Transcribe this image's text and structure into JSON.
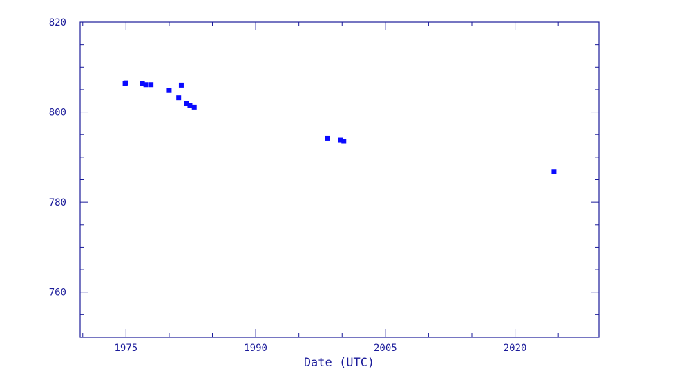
{
  "chart_data": {
    "type": "scatter",
    "title": "",
    "xlabel": "Date (UTC)",
    "ylabel": "",
    "xlim": [
      1969.7,
      2029.7
    ],
    "ylim": [
      750,
      820
    ],
    "x_major_ticks": [
      1975,
      1990,
      2005,
      2020
    ],
    "x_tick_labels": [
      "1975",
      "1990",
      "2005",
      "2020"
    ],
    "y_major_ticks": [
      760,
      780,
      800,
      820
    ],
    "y_tick_labels": [
      "760",
      "780",
      "800",
      "820"
    ],
    "grid": false,
    "legend": "none",
    "colors": {
      "axis": "#1b1b9a",
      "marker": "#0a0aff"
    },
    "marker": "square",
    "series": [
      {
        "x": [
          1974.9,
          1975.0,
          1976.9,
          1977.3,
          1977.9,
          1980.0,
          1981.1,
          1981.4,
          1982.0,
          1982.4,
          1982.9,
          1998.3,
          1999.8,
          2000.2,
          2024.5
        ],
        "y": [
          806.3,
          806.5,
          806.3,
          806.1,
          806.1,
          804.8,
          803.2,
          806.0,
          802.0,
          801.5,
          801.1,
          794.2,
          793.8,
          793.5,
          786.8
        ]
      }
    ]
  }
}
